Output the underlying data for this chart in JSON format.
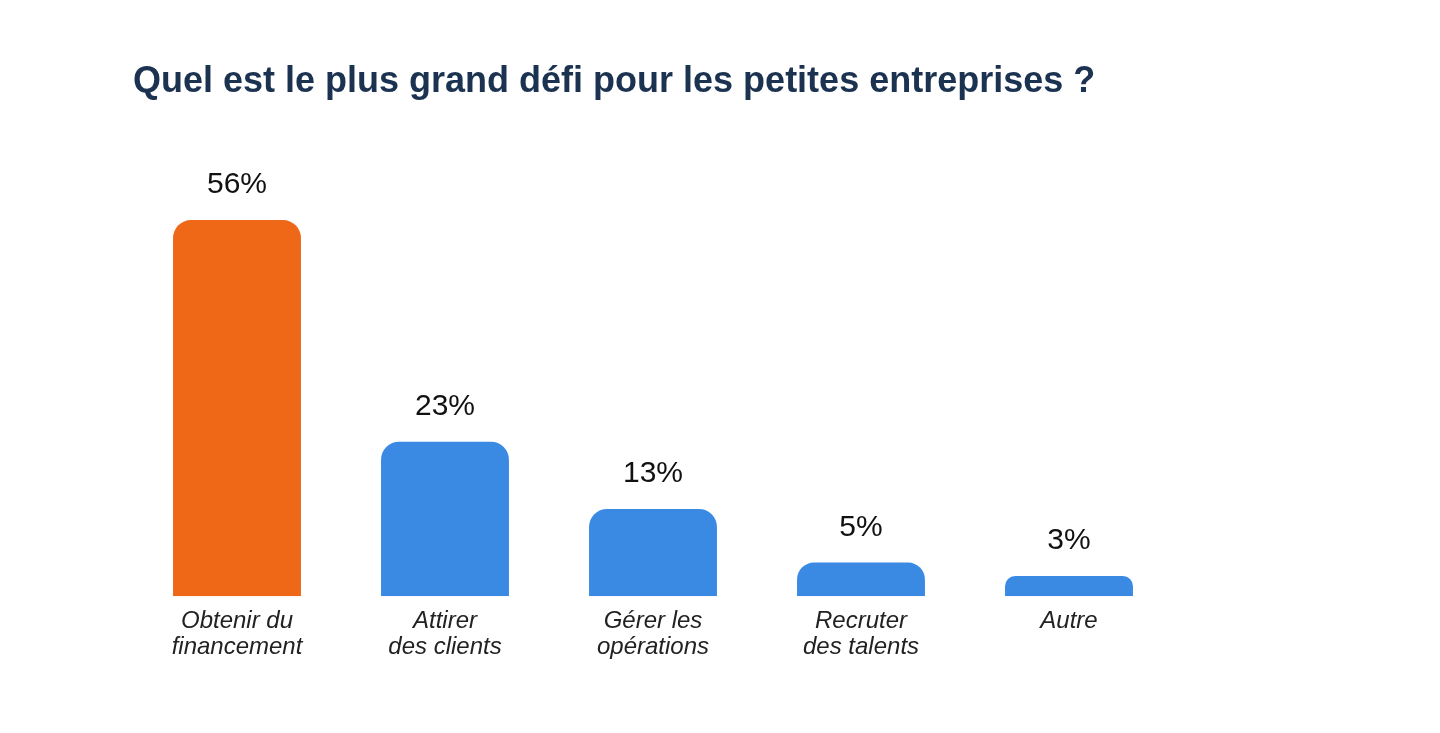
{
  "chart_data": {
    "type": "bar",
    "title": "Quel est le plus grand défi pour les petites entreprises ?",
    "categories": [
      "Obtenir du financement",
      "Attirer des clients",
      "Gérer les opérations",
      "Recruter des talents",
      "Autre"
    ],
    "values": [
      56,
      23,
      13,
      5,
      3
    ],
    "colors": [
      "#ee6817",
      "#3a8ae4",
      "#3a8ae4",
      "#3a8ae4",
      "#3a8ae4"
    ],
    "value_labels": [
      "56%",
      "23%",
      "13%",
      "5%",
      "3%"
    ],
    "grid": false,
    "legend": false
  }
}
